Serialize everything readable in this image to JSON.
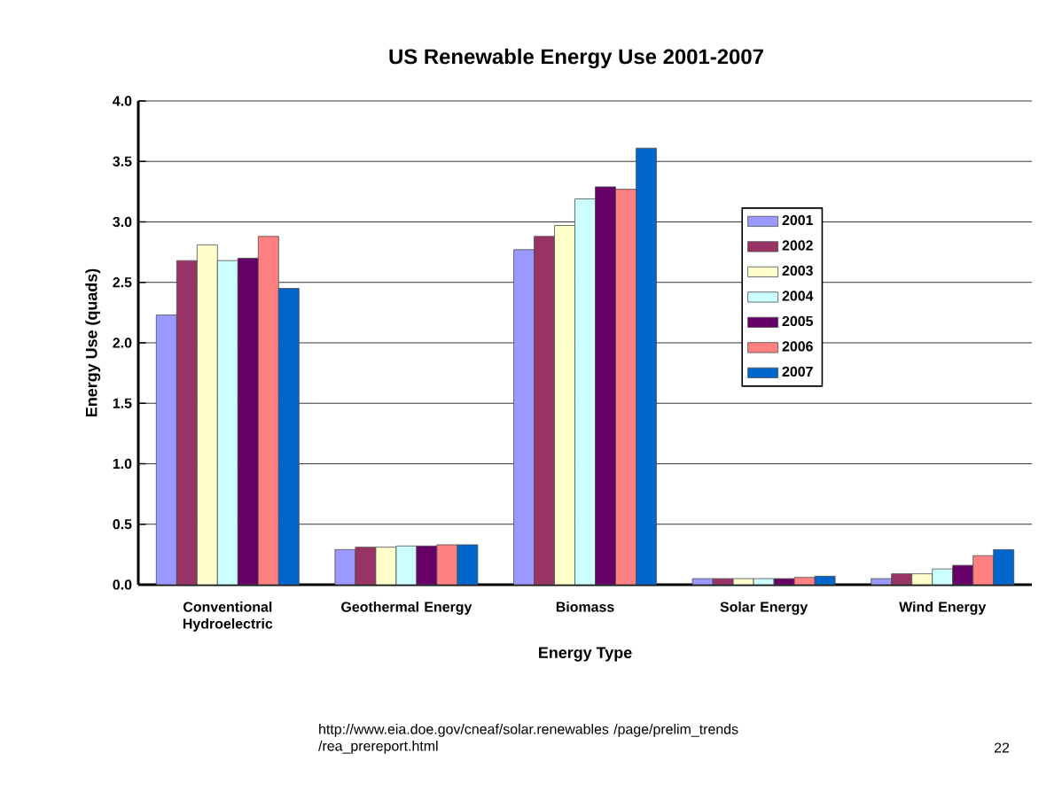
{
  "chart_data": {
    "type": "bar",
    "title": "US Renewable Energy Use 2001-2007",
    "xlabel": "Energy Type",
    "ylabel": "Energy Use (quads)",
    "categories": [
      "Conventional Hydroelectric",
      "Geothermal Energy",
      "Biomass",
      "Solar Energy",
      "Wind Energy"
    ],
    "series": [
      {
        "name": "2001",
        "color": "#9999ff",
        "values": [
          2.23,
          0.29,
          2.77,
          0.05,
          0.05
        ]
      },
      {
        "name": "2002",
        "color": "#993366",
        "values": [
          2.68,
          0.31,
          2.88,
          0.05,
          0.09
        ]
      },
      {
        "name": "2003",
        "color": "#ffffcc",
        "values": [
          2.81,
          0.31,
          2.97,
          0.05,
          0.09
        ]
      },
      {
        "name": "2004",
        "color": "#ccffff",
        "values": [
          2.68,
          0.32,
          3.19,
          0.05,
          0.13
        ]
      },
      {
        "name": "2005",
        "color": "#660066",
        "values": [
          2.7,
          0.32,
          3.29,
          0.05,
          0.16
        ]
      },
      {
        "name": "2006",
        "color": "#ff8080",
        "values": [
          2.88,
          0.33,
          3.27,
          0.06,
          0.24
        ]
      },
      {
        "name": "2007",
        "color": "#0066cc",
        "values": [
          2.45,
          0.33,
          3.61,
          0.07,
          0.29
        ]
      }
    ],
    "ylim": [
      0,
      4
    ],
    "yticks": [
      {
        "value": 0,
        "label": "0.0"
      },
      {
        "value": 0.5,
        "label": "0.5"
      },
      {
        "value": 1,
        "label": "1.0"
      },
      {
        "value": 1.5,
        "label": "1.5"
      },
      {
        "value": 2,
        "label": "2.0"
      },
      {
        "value": 2.5,
        "label": "2.5"
      },
      {
        "value": 3,
        "label": "3.0"
      },
      {
        "value": 3.5,
        "label": "3.5"
      },
      {
        "value": 4,
        "label": "4.0"
      }
    ],
    "grid": "y",
    "legend": "right",
    "annotations": [
      "http://www.eia.doe.gov/cneaf/solar.renewables /page/prelim_trends /rea_prereport.html",
      "22"
    ]
  }
}
